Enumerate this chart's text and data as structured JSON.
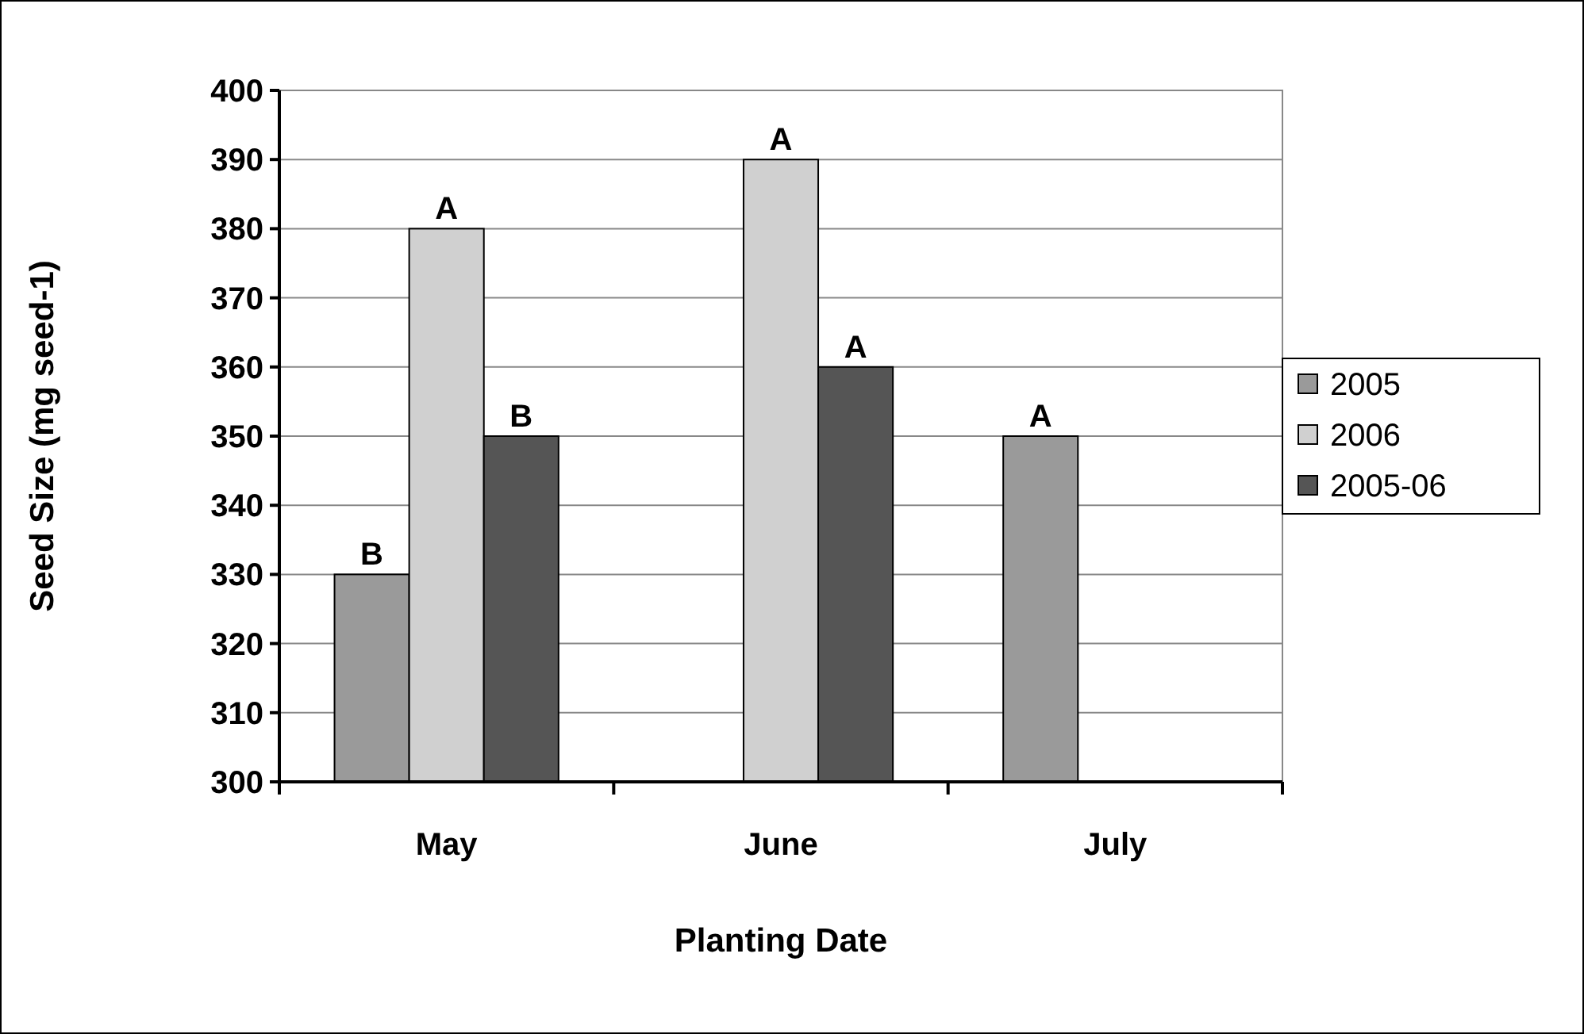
{
  "chart_data": {
    "type": "bar",
    "xlabel": "Planting Date",
    "ylabel": "Seed Size (mg seed-1)",
    "categories": [
      "May",
      "June",
      "July"
    ],
    "series": [
      {
        "name": "2005",
        "color": "#9a9a9a",
        "values": [
          330,
          null,
          350
        ],
        "value_labels": [
          "B",
          null,
          "A"
        ]
      },
      {
        "name": "2006",
        "color": "#d0d0d0",
        "values": [
          380,
          390,
          null
        ],
        "value_labels": [
          "A",
          "A",
          null
        ]
      },
      {
        "name": "2005-06",
        "color": "#555555",
        "values": [
          350,
          360,
          null
        ],
        "value_labels": [
          "B",
          "A",
          null
        ]
      }
    ],
    "ylim": [
      300,
      400
    ],
    "yticks": [
      300,
      310,
      320,
      330,
      340,
      350,
      360,
      370,
      380,
      390,
      400
    ],
    "grid": "y",
    "legend": "right"
  }
}
